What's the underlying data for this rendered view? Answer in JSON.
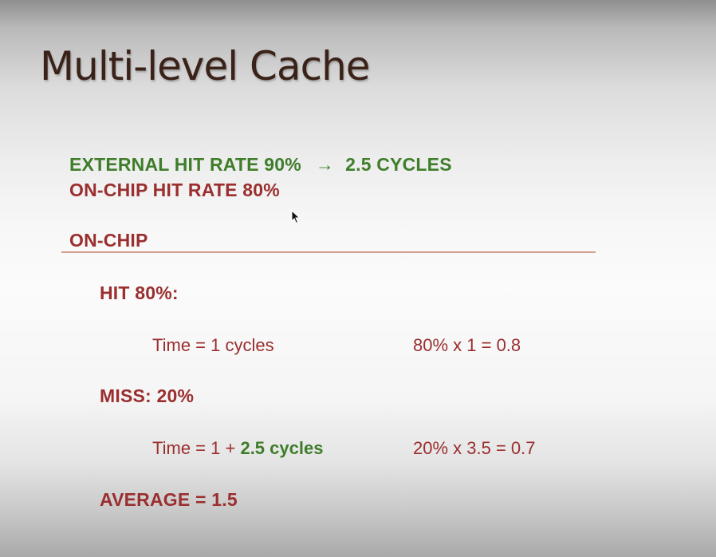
{
  "slide": {
    "title": "Multi-level Cache",
    "external_line": {
      "label": "EXTERNAL HIT RATE 90%",
      "arrow": "→",
      "result": "2.5 CYCLES"
    },
    "onchip_hit_rate": "ON-CHIP HIT RATE 80%",
    "section_heading": "ON-CHIP",
    "hit": {
      "heading": "HIT 80%:",
      "time": "Time = 1 cycles",
      "calc": "80% x 1 = 0.8"
    },
    "miss": {
      "heading": "MISS: 20%",
      "time_prefix": "Time = 1 + ",
      "time_highlight": "2.5 cycles",
      "calc": "20% x 3.5 = 0.7"
    },
    "average": "AVERAGE = 1.5"
  },
  "colors": {
    "title": "#3a2218",
    "green": "#3f7d2a",
    "red": "#9b2e2e",
    "divider": "#d0a090"
  }
}
